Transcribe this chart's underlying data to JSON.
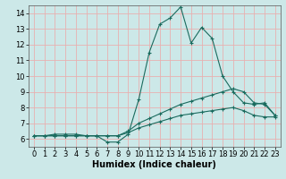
{
  "xlabel": "Humidex (Indice chaleur)",
  "background_color": "#cce8e8",
  "grid_color": "#e8b0b0",
  "line_color": "#1a6b5e",
  "xlim": [
    -0.5,
    23.5
  ],
  "ylim": [
    5.5,
    14.5
  ],
  "yticks": [
    6,
    7,
    8,
    9,
    10,
    11,
    12,
    13,
    14
  ],
  "xticks": [
    0,
    1,
    2,
    3,
    4,
    5,
    6,
    7,
    8,
    9,
    10,
    11,
    12,
    13,
    14,
    15,
    16,
    17,
    18,
    19,
    20,
    21,
    22,
    23
  ],
  "line1_x": [
    0,
    1,
    2,
    3,
    4,
    5,
    6,
    7,
    8,
    9,
    10,
    11,
    12,
    13,
    14,
    15,
    16,
    17,
    18,
    19,
    20,
    21,
    22,
    23
  ],
  "line1_y": [
    6.2,
    6.2,
    6.3,
    6.3,
    6.3,
    6.2,
    6.2,
    5.8,
    5.8,
    6.3,
    8.5,
    11.5,
    13.3,
    13.7,
    14.4,
    12.1,
    13.1,
    12.4,
    10.0,
    9.0,
    8.3,
    8.2,
    8.3,
    7.5
  ],
  "line2_x": [
    0,
    1,
    2,
    3,
    4,
    5,
    6,
    7,
    8,
    9,
    10,
    11,
    12,
    13,
    14,
    15,
    16,
    17,
    18,
    19,
    20,
    21,
    22,
    23
  ],
  "line2_y": [
    6.2,
    6.2,
    6.2,
    6.2,
    6.2,
    6.2,
    6.2,
    6.2,
    6.2,
    6.5,
    7.0,
    7.3,
    7.6,
    7.9,
    8.2,
    8.4,
    8.6,
    8.8,
    9.0,
    9.2,
    9.0,
    8.3,
    8.2,
    7.5
  ],
  "line3_x": [
    0,
    1,
    2,
    3,
    4,
    5,
    6,
    7,
    8,
    9,
    10,
    11,
    12,
    13,
    14,
    15,
    16,
    17,
    18,
    19,
    20,
    21,
    22,
    23
  ],
  "line3_y": [
    6.2,
    6.2,
    6.2,
    6.2,
    6.2,
    6.2,
    6.2,
    6.2,
    6.2,
    6.4,
    6.7,
    6.9,
    7.1,
    7.3,
    7.5,
    7.6,
    7.7,
    7.8,
    7.9,
    8.0,
    7.8,
    7.5,
    7.4,
    7.4
  ],
  "tick_fontsize": 6,
  "xlabel_fontsize": 7
}
